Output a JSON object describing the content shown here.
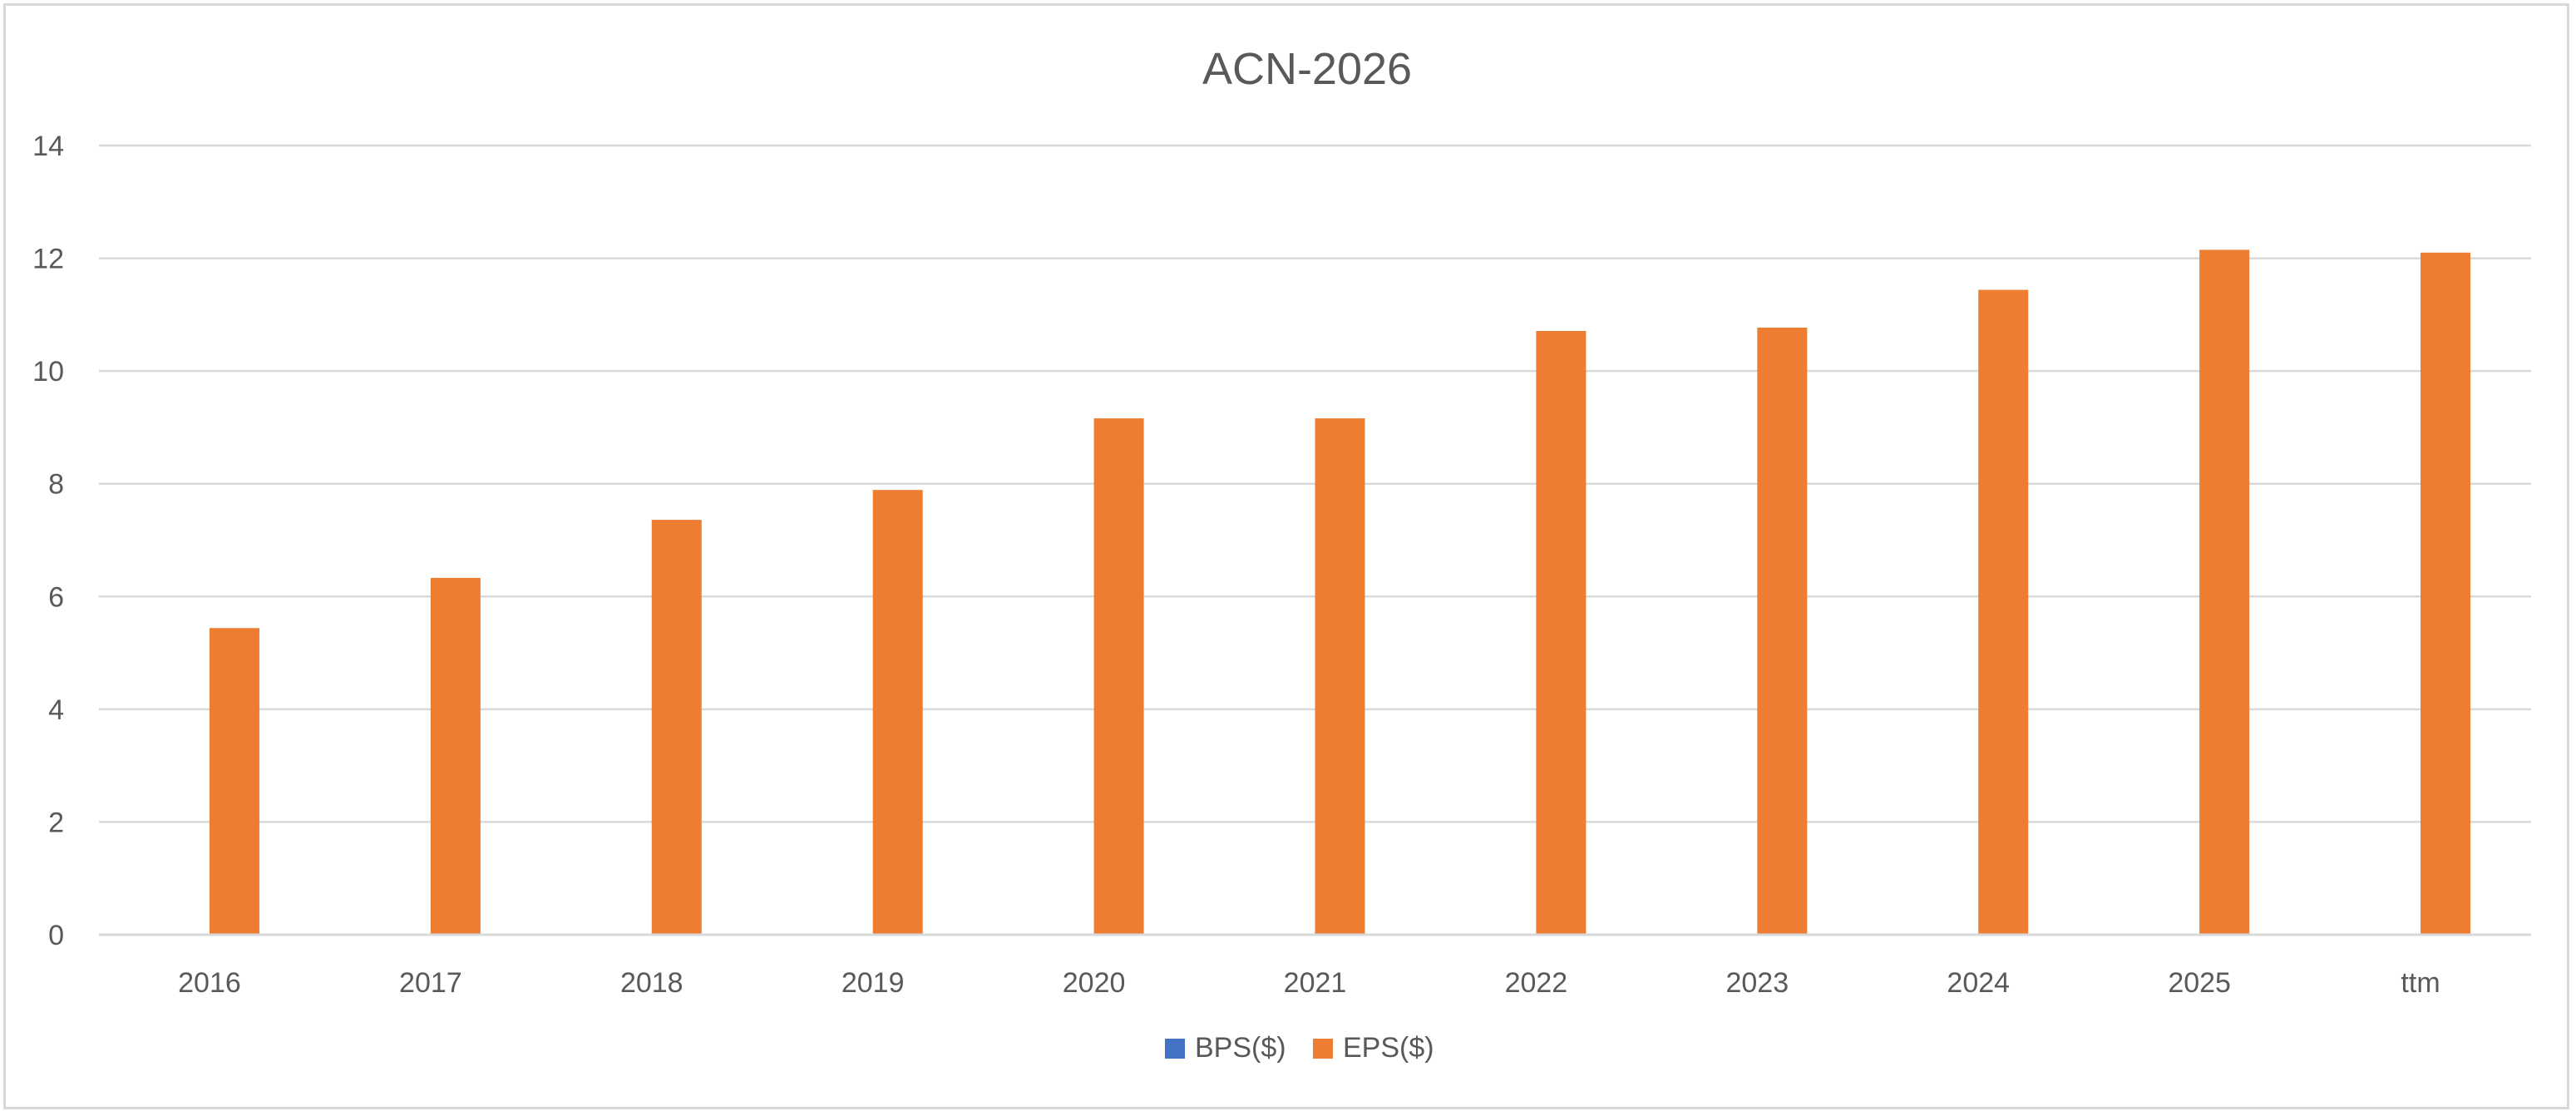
{
  "chart_data": {
    "type": "bar",
    "title": "ACN-2026",
    "categories": [
      "2016",
      "2017",
      "2018",
      "2019",
      "2020",
      "2021",
      "2022",
      "2023",
      "2024",
      "2025",
      "ttm"
    ],
    "series": [
      {
        "name": "BPS($)",
        "color": "#4472c4",
        "values": [
          null,
          null,
          null,
          null,
          null,
          null,
          null,
          null,
          null,
          null,
          null
        ]
      },
      {
        "name": "EPS($)",
        "color": "#ed7d31",
        "values": [
          5.44,
          6.33,
          7.36,
          7.89,
          9.16,
          9.16,
          10.71,
          10.77,
          11.44,
          12.15,
          12.1
        ]
      }
    ],
    "xlabel": "",
    "ylabel": "",
    "ylim": [
      0,
      14
    ],
    "yticks": [
      0,
      2,
      4,
      6,
      8,
      10,
      12,
      14
    ],
    "grid": true,
    "legend_position": "bottom"
  }
}
